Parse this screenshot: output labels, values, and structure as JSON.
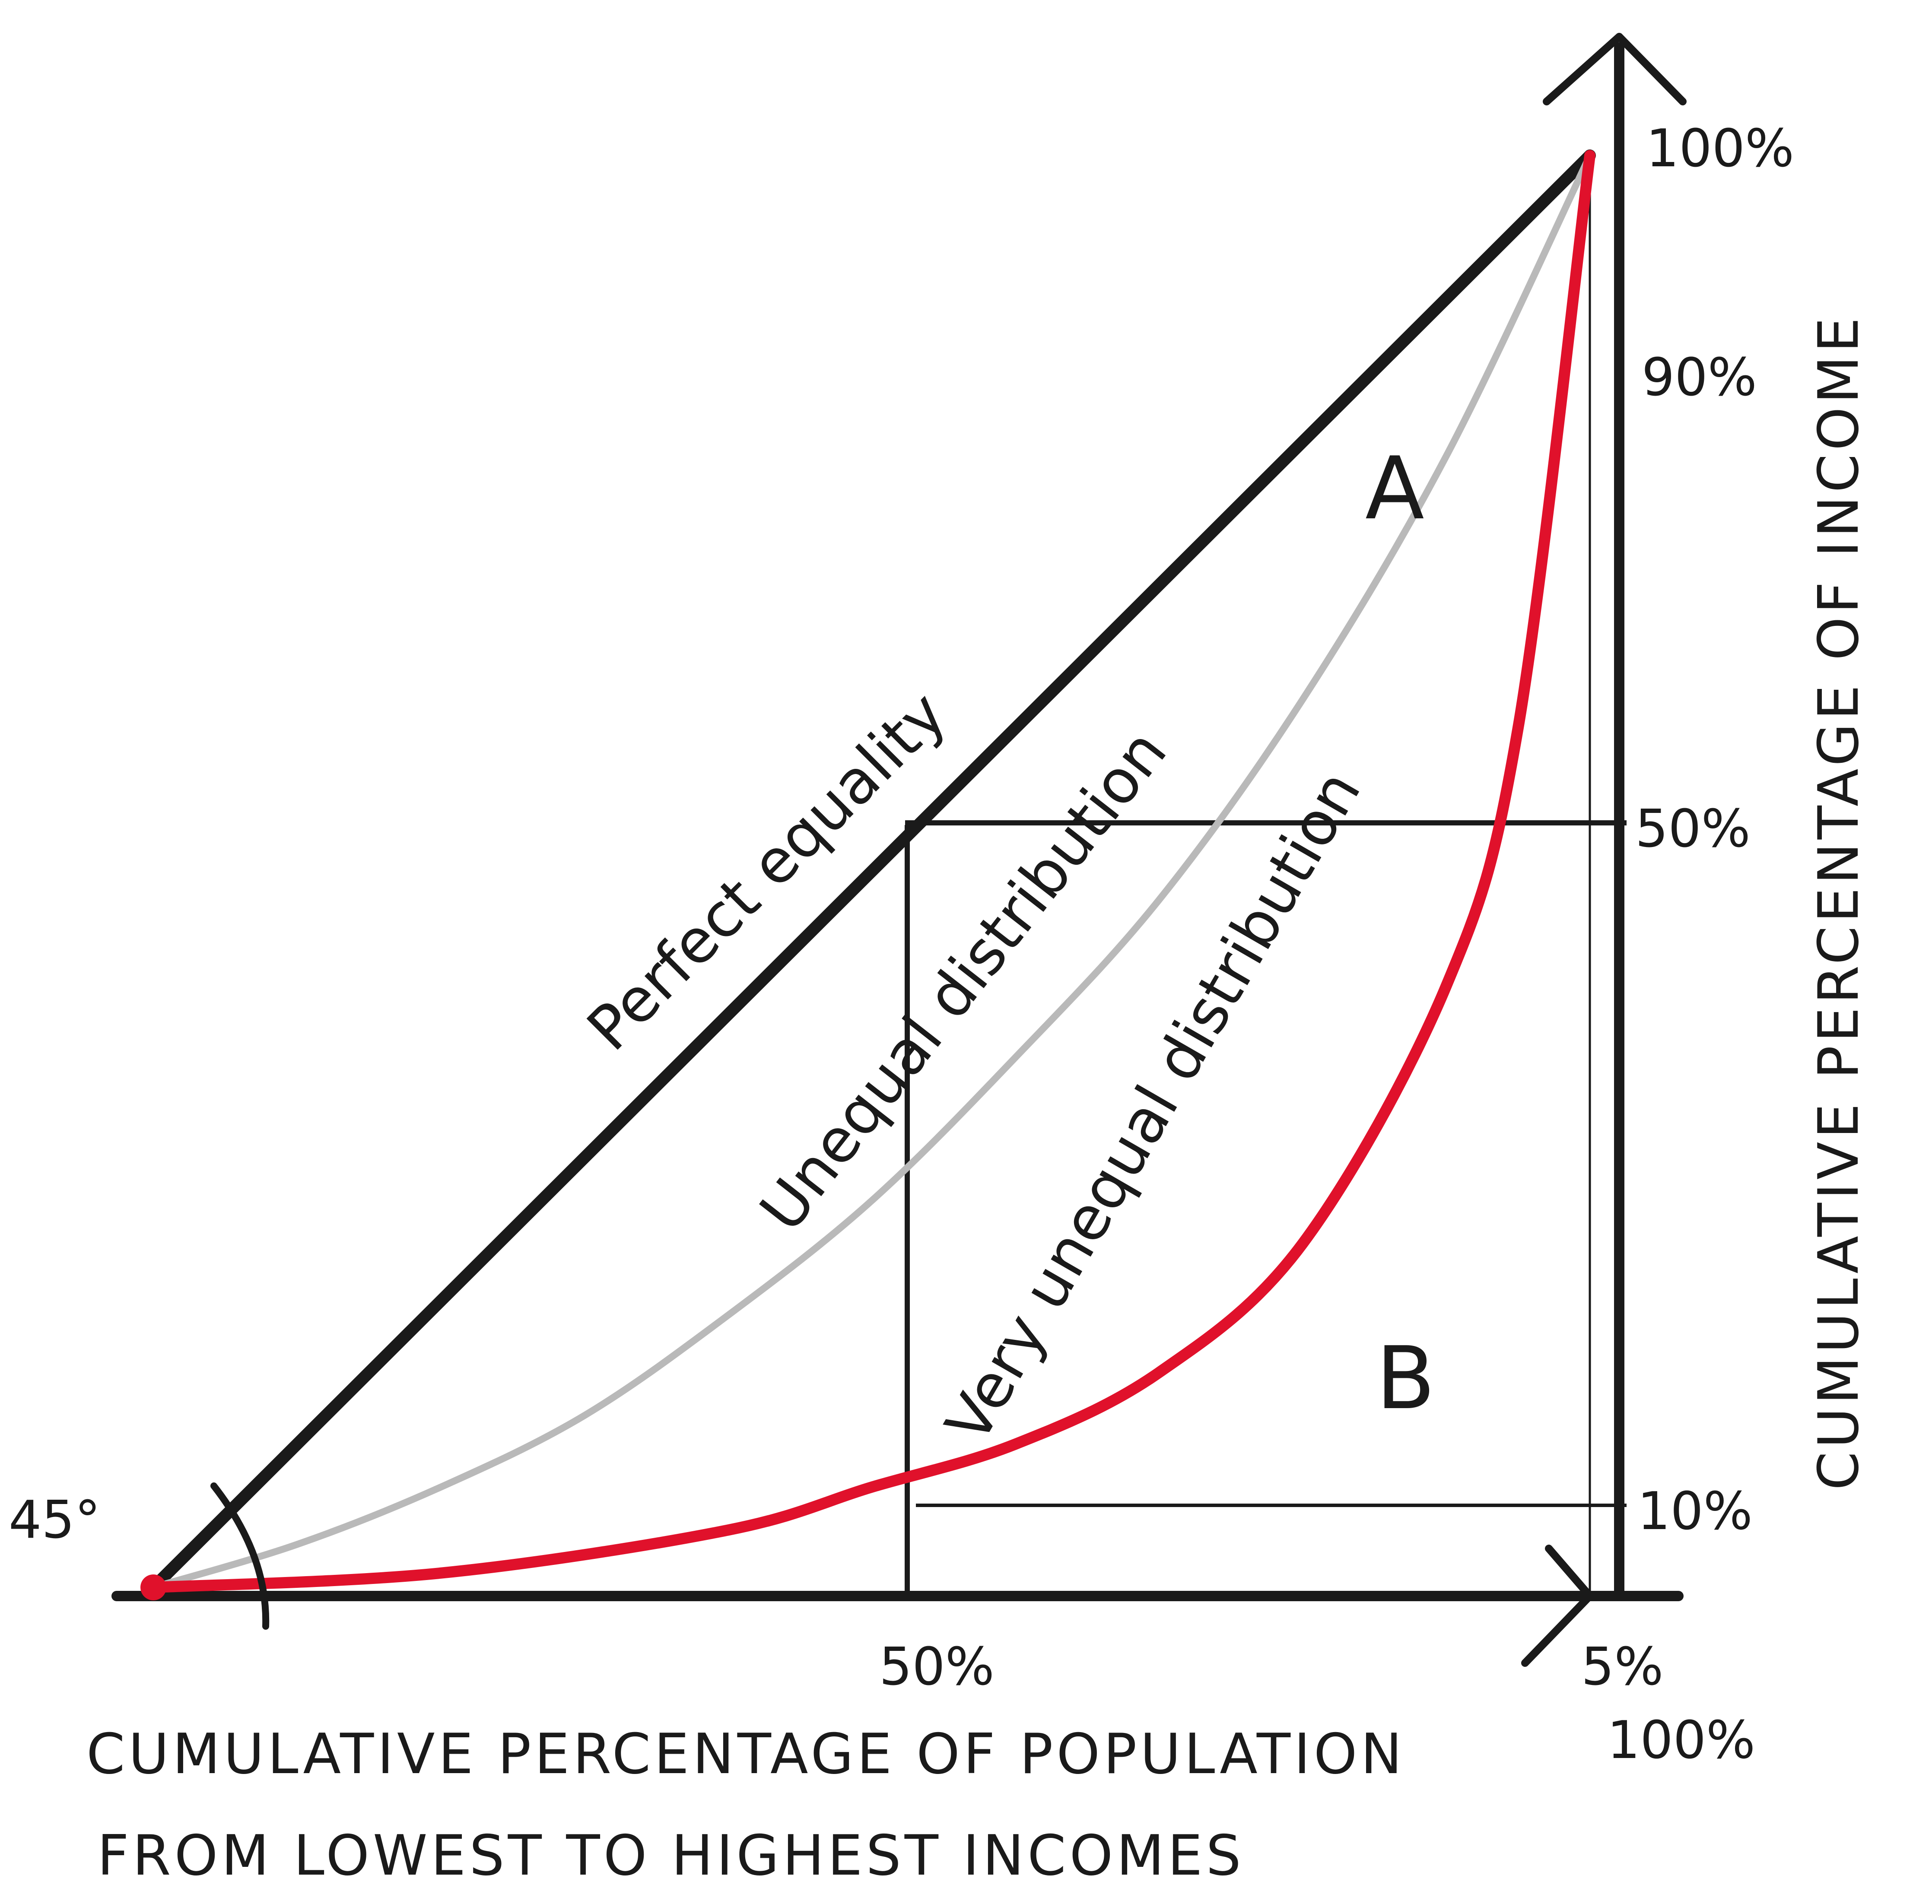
{
  "colors": {
    "ink": "#1a1a1a",
    "gray_curve": "#b9b9b9",
    "red_curve": "#e0112b"
  },
  "chart_data": {
    "type": "line",
    "series": [
      {
        "name": "Perfect equality",
        "x": [
          0,
          100
        ],
        "y": [
          0,
          100
        ]
      },
      {
        "name": "Unequal distribution",
        "x": [
          0,
          10,
          20,
          30,
          40,
          50,
          60,
          70,
          80,
          90,
          100
        ],
        "y": [
          0,
          3,
          7,
          12,
          19,
          27,
          37,
          48,
          62,
          79,
          100
        ]
      },
      {
        "name": "Very unequal distribution",
        "x": [
          0,
          20,
          40,
          50,
          60,
          70,
          80,
          90,
          95,
          100
        ],
        "y": [
          0,
          1,
          4,
          7,
          10,
          15,
          24,
          42,
          60,
          100
        ]
      }
    ],
    "regions": [
      "A",
      "B"
    ],
    "angle_label": "45°",
    "x_ticks": [
      "50%",
      "5%",
      "100%"
    ],
    "y_ticks": [
      "100%",
      "90%",
      "50%",
      "10%"
    ],
    "xlabel": [
      "CUMULATIVE PERCENTAGE OF POPULATION",
      "FROM LOWEST TO HIGHEST INCOMES"
    ],
    "ylabel": "CUMULATIVE PERCENTAGE OF INCOME",
    "xlim": [
      0,
      100
    ],
    "ylim": [
      0,
      100
    ]
  }
}
